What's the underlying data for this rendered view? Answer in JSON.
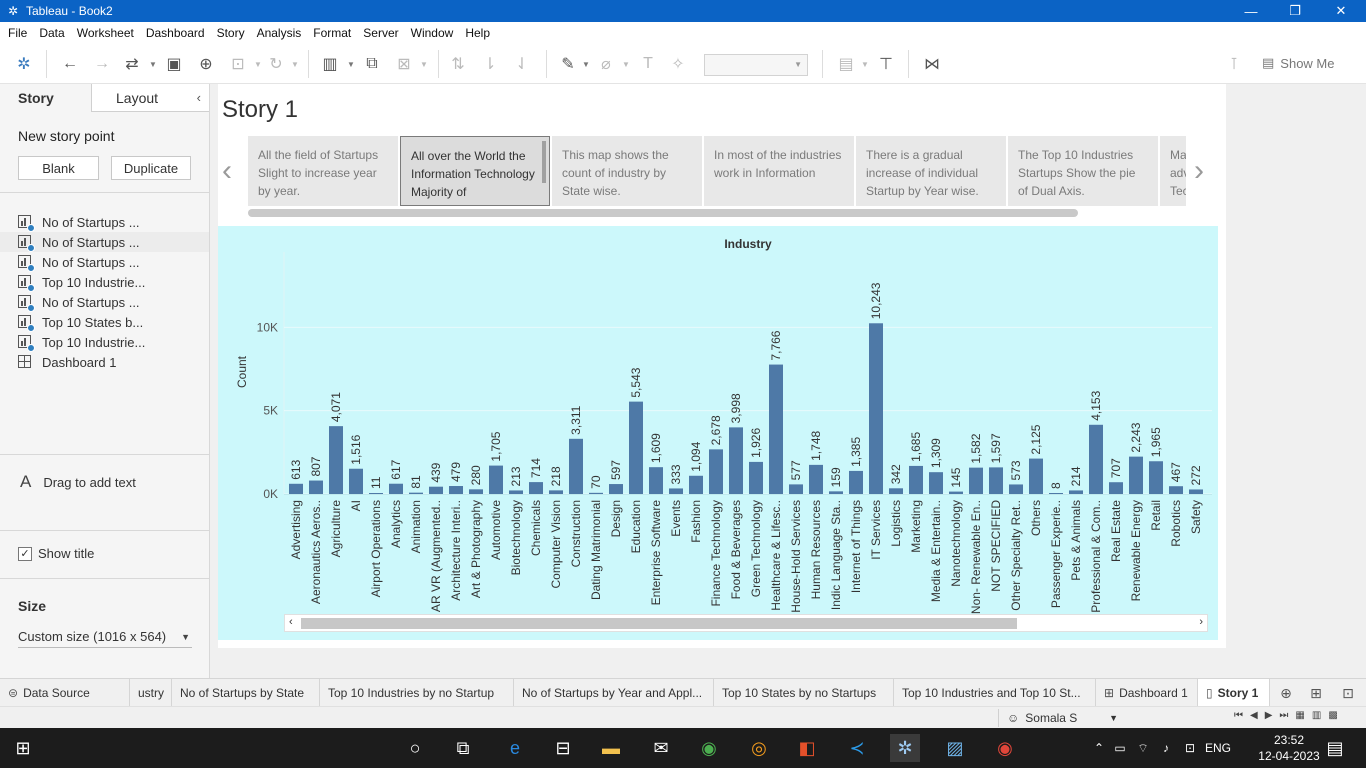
{
  "window": {
    "title": "Tableau - Book2",
    "minimize": "—",
    "restore": "❐",
    "close": "✕"
  },
  "menu": [
    "File",
    "Data",
    "Worksheet",
    "Dashboard",
    "Story",
    "Analysis",
    "Format",
    "Server",
    "Window",
    "Help"
  ],
  "toolbar": {
    "show_me": "Show Me"
  },
  "left_pane": {
    "tab_story": "Story",
    "tab_layout": "Layout",
    "new_story_point": "New story point",
    "blank_button": "Blank",
    "duplicate_button": "Duplicate",
    "sheets": [
      {
        "label": "No of Startups ...",
        "icon": "worksheet-icon"
      },
      {
        "label": "No of Startups ...",
        "icon": "worksheet-icon"
      },
      {
        "label": "No of Startups ...",
        "icon": "worksheet-icon"
      },
      {
        "label": "Top 10 Industrie...",
        "icon": "worksheet-icon"
      },
      {
        "label": "No of Startups ...",
        "icon": "worksheet-icon"
      },
      {
        "label": "Top 10 States b...",
        "icon": "worksheet-icon"
      },
      {
        "label": "Top 10 Industrie...",
        "icon": "worksheet-icon"
      },
      {
        "label": "Dashboard 1",
        "icon": "dashboard-icon"
      }
    ],
    "drag_text": "Drag to add text",
    "show_title": "Show title",
    "size_label": "Size",
    "size_value": "Custom size (1016 x 564)"
  },
  "story": {
    "title": "Story 1",
    "points": [
      "All the field of Startups Slight to increase year by year.",
      "All over the World the Information Technology Majority of",
      "This map shows the count of industry by State wise.",
      "In most of the industries work in Information",
      "There is a gradual increase of individual Startup by Year wise.",
      "The Top 10 Industries Startups Show the pie of Dual Axis.",
      "Ma adv Tec"
    ],
    "active_point": 1
  },
  "chart_data": {
    "type": "bar",
    "title": "Industry",
    "ylabel": "Count",
    "xlabel": "",
    "ylim": [
      0,
      10800
    ],
    "yticks": [
      {
        "v": 0,
        "label": "0K"
      },
      {
        "v": 5000,
        "label": "5K"
      },
      {
        "v": 10000,
        "label": "10K"
      }
    ],
    "grid": true,
    "bar_color": "#4e79a7",
    "categories": [
      "Advertising",
      "Aeronautics Aeros..",
      "Agriculture",
      "AI",
      "Airport Operations",
      "Analytics",
      "Animation",
      "AR VR (Augmented..",
      "Architecture Interi..",
      "Art & Photography",
      "Automotive",
      "Biotechnology",
      "Chemicals",
      "Computer Vision",
      "Construction",
      "Dating Matrimonial",
      "Design",
      "Education",
      "Enterprise Software",
      "Events",
      "Fashion",
      "Finance Technology",
      "Food & Beverages",
      "Green Technology",
      "Healthcare & Lifesc..",
      "House-Hold Services",
      "Human Resources",
      "Indic Language Sta..",
      "Internet of Things",
      "IT Services",
      "Logistics",
      "Marketing",
      "Media & Entertain..",
      "Nanotechnology",
      "Non- Renewable En..",
      "NOT SPECIFIED",
      "Other Specialty Ret..",
      "Others",
      "Passenger Experie..",
      "Pets & Animals",
      "Professional & Com..",
      "Real Estate",
      "Renewable Energy",
      "Retail",
      "Robotics",
      "Safety"
    ],
    "values": [
      613,
      807,
      4071,
      1516,
      11,
      617,
      81,
      439,
      479,
      280,
      1705,
      213,
      714,
      218,
      3311,
      70,
      597,
      5543,
      1609,
      333,
      1094,
      2678,
      3998,
      1926,
      7766,
      577,
      1748,
      159,
      1385,
      10243,
      342,
      1685,
      1309,
      145,
      1582,
      1597,
      573,
      2125,
      8,
      214,
      4153,
      707,
      2243,
      1965,
      467,
      272
    ],
    "value_labels": [
      "613",
      "807",
      "4,071",
      "1,516",
      "11",
      "617",
      "81",
      "439",
      "479",
      "280",
      "1,705",
      "213",
      "714",
      "218",
      "3,311",
      "70",
      "597",
      "5,543",
      "1,609",
      "333",
      "1,094",
      "2,678",
      "3,998",
      "1,926",
      "7,766",
      "577",
      "1,748",
      "159",
      "1,385",
      "10,243",
      "342",
      "1,685",
      "1,309",
      "145",
      "1,582",
      "1,597",
      "573",
      "2,125",
      "8",
      "214",
      "4,153",
      "707",
      "2,243",
      "1,965",
      "467",
      "272"
    ]
  },
  "bottom_tabs": [
    {
      "label": "Data Source",
      "icon": "database-icon"
    },
    {
      "label": "ustry",
      "icon": ""
    },
    {
      "label": "No of Startups by State",
      "icon": ""
    },
    {
      "label": "Top 10 Industries by no Startup",
      "icon": ""
    },
    {
      "label": "No of Startups by Year and Appl...",
      "icon": ""
    },
    {
      "label": "Top 10 States by no Startups",
      "icon": ""
    },
    {
      "label": "Top 10 Industries and Top 10 St...",
      "icon": ""
    },
    {
      "label": "Dashboard 1",
      "icon": "dashboard-icon"
    },
    {
      "label": "Story 1",
      "icon": "story-icon"
    }
  ],
  "status": {
    "user": "Somala S"
  },
  "taskbar": {
    "lang": "ENG",
    "time": "23:52",
    "date": "12-04-2023"
  }
}
